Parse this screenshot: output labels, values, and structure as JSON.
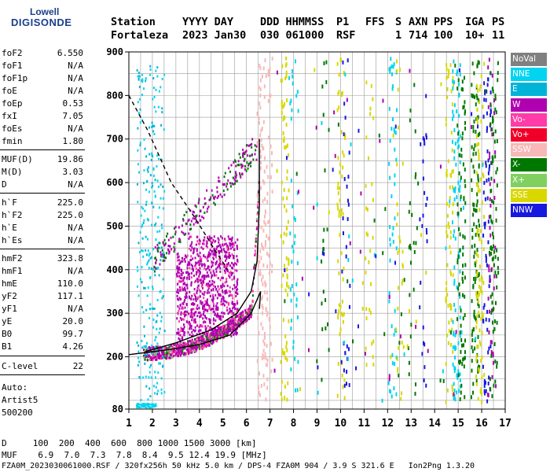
{
  "logo": {
    "top": "Lowell",
    "bottom": "DIGISONDE"
  },
  "header": {
    "labels": [
      "Station",
      "YYYY DAY",
      "DDD HHMMSS",
      "P1",
      "FFS",
      "S",
      "AXN",
      "PPS",
      "IGA",
      "PS"
    ],
    "values": [
      "Fortaleza",
      "2023 Jan30",
      "030 061000",
      "RSF",
      "",
      "1",
      "714",
      "100",
      "10+",
      "11"
    ]
  },
  "params": [
    {
      "key": "foF2",
      "value": "6.550"
    },
    {
      "key": "foF1",
      "value": "N/A"
    },
    {
      "key": "foF1p",
      "value": "N/A"
    },
    {
      "key": "foE",
      "value": "N/A"
    },
    {
      "key": "foEp",
      "value": "0.53"
    },
    {
      "key": "fxI",
      "value": "7.05"
    },
    {
      "key": "foEs",
      "value": "N/A"
    },
    {
      "key": "fmin",
      "value": "1.80"
    },
    {
      "key": "MUF(D)",
      "value": "19.86"
    },
    {
      "key": "M(D)",
      "value": "3.03"
    },
    {
      "key": "D",
      "value": "N/A"
    },
    {
      "key": "h`F",
      "value": "225.0"
    },
    {
      "key": "h`F2",
      "value": "225.0"
    },
    {
      "key": "h`E",
      "value": "N/A"
    },
    {
      "key": "h`Es",
      "value": "N/A"
    },
    {
      "key": "hmF2",
      "value": "323.8"
    },
    {
      "key": "hmF1",
      "value": "N/A"
    },
    {
      "key": "hmE",
      "value": "110.0"
    },
    {
      "key": "yF2",
      "value": "117.1"
    },
    {
      "key": "yF1",
      "value": "N/A"
    },
    {
      "key": "yE",
      "value": "20.0"
    },
    {
      "key": "B0",
      "value": "99.7"
    },
    {
      "key": "B1",
      "value": "4.26"
    },
    {
      "key": "C-level",
      "value": "22"
    }
  ],
  "notes": [
    "Auto:",
    "Artist5",
    "500200"
  ],
  "footer": {
    "d_row": "D     100  200  400  600  800 1000 1500 3000 [km]",
    "muf_row": "MUF    6.9  7.0  7.3  7.8  8.4  9.5 12.4 19.9 [MHz]",
    "info_row": "FZA0M_2023030061000.RSF / 320fx256h 50 kHz 5.0 km / DPS-4 FZA0M 904 / 3.9 S 321.6 E   Ion2Png 1.3.20"
  },
  "legend": [
    {
      "label": "NoVal",
      "color": "#808080"
    },
    {
      "label": "NNE",
      "color": "#00d4f0"
    },
    {
      "label": "E",
      "color": "#00b4d8"
    },
    {
      "label": "W",
      "color": "#b000b0"
    },
    {
      "label": "Vo-",
      "color": "#ff3ca8"
    },
    {
      "label": "Vo+",
      "color": "#f00028"
    },
    {
      "label": "SSW",
      "color": "#f8b8b8"
    },
    {
      "label": "X-",
      "color": "#007800"
    },
    {
      "label": "X+",
      "color": "#80d060"
    },
    {
      "label": "SSE",
      "color": "#d8d800"
    },
    {
      "label": "NNW",
      "color": "#1818e0"
    }
  ],
  "chart_data": {
    "type": "scatter",
    "x_ticks": [
      1,
      2,
      3,
      4,
      5,
      6,
      7,
      8,
      9,
      10,
      11,
      12,
      13,
      14,
      15,
      16,
      17
    ],
    "y_ticks": [
      200,
      300,
      400,
      500,
      600,
      700,
      800,
      900
    ],
    "xlim": [
      1,
      17
    ],
    "ylim": [
      80,
      900
    ],
    "grid": true,
    "xlabel": "",
    "ylabel": "",
    "profile_curve": {
      "x": [
        1.7,
        3.0,
        4.5,
        5.6,
        6.2,
        6.45,
        6.55,
        6.55
      ],
      "y": [
        212,
        232,
        262,
        300,
        350,
        420,
        550,
        700
      ]
    },
    "x_trace": {
      "x": [
        1.0,
        2.5,
        4.0,
        5.3,
        6.2,
        6.6,
        6.55
      ],
      "y": [
        205,
        215,
        228,
        250,
        300,
        350,
        310
      ]
    },
    "dashed_profile": {
      "x": [
        1.0,
        1.8,
        2.8,
        3.8,
        4.6,
        5.2
      ],
      "y": [
        800,
        720,
        600,
        520,
        450,
        400
      ]
    }
  }
}
